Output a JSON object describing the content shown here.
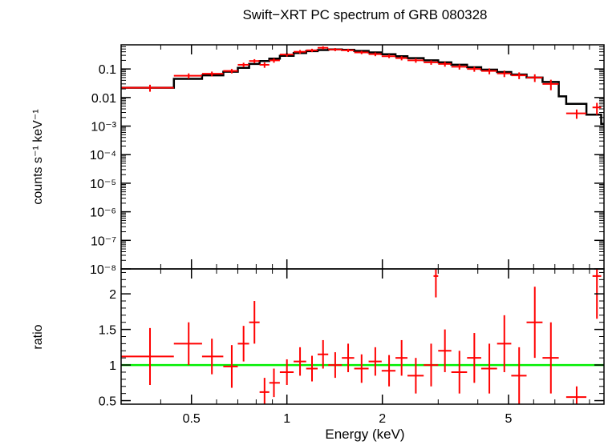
{
  "chart_data": [
    {
      "type": "scatter",
      "title": "Swift−XRT PC spectrum of GRB 080328",
      "xlabel": "Energy (keV)",
      "ylabel": "counts s⁻¹ keV⁻¹",
      "xscale": "log",
      "yscale": "log",
      "xlim": [
        0.3,
        10
      ],
      "ylim": [
        1e-08,
        0.7
      ],
      "x_tick_labels": [
        "0.5",
        "1",
        "2",
        "5"
      ],
      "y_tick_labels": [
        "0.1",
        "0.01",
        "10⁻³",
        "10⁻⁴",
        "10⁻⁵",
        "10⁻⁶",
        "10⁻⁷",
        "10⁻⁸"
      ],
      "series": [
        {
          "name": "data",
          "color": "#ff0000",
          "points": [
            {
              "x": 0.37,
              "xlo": 0.3,
              "xhi": 0.44,
              "y": 0.022,
              "yerr": 0.006
            },
            {
              "x": 0.49,
              "xlo": 0.44,
              "xhi": 0.54,
              "y": 0.058,
              "yerr": 0.012
            },
            {
              "x": 0.58,
              "xlo": 0.54,
              "xhi": 0.63,
              "y": 0.068,
              "yerr": 0.013
            },
            {
              "x": 0.67,
              "xlo": 0.63,
              "xhi": 0.7,
              "y": 0.085,
              "yerr": 0.015
            },
            {
              "x": 0.73,
              "xlo": 0.7,
              "xhi": 0.76,
              "y": 0.14,
              "yerr": 0.025
            },
            {
              "x": 0.79,
              "xlo": 0.76,
              "xhi": 0.82,
              "y": 0.19,
              "yerr": 0.03
            },
            {
              "x": 0.85,
              "xlo": 0.82,
              "xhi": 0.88,
              "y": 0.14,
              "yerr": 0.03
            },
            {
              "x": 0.91,
              "xlo": 0.88,
              "xhi": 0.95,
              "y": 0.2,
              "yerr": 0.035
            },
            {
              "x": 1.0,
              "xlo": 0.95,
              "xhi": 1.05,
              "y": 0.32,
              "yerr": 0.05
            },
            {
              "x": 1.1,
              "xlo": 1.05,
              "xhi": 1.15,
              "y": 0.4,
              "yerr": 0.06
            },
            {
              "x": 1.2,
              "xlo": 1.15,
              "xhi": 1.25,
              "y": 0.45,
              "yerr": 0.06
            },
            {
              "x": 1.3,
              "xlo": 1.25,
              "xhi": 1.35,
              "y": 0.55,
              "yerr": 0.07
            },
            {
              "x": 1.42,
              "xlo": 1.35,
              "xhi": 1.49,
              "y": 0.48,
              "yerr": 0.06
            },
            {
              "x": 1.56,
              "xlo": 1.49,
              "xhi": 1.63,
              "y": 0.45,
              "yerr": 0.06
            },
            {
              "x": 1.72,
              "xlo": 1.63,
              "xhi": 1.81,
              "y": 0.38,
              "yerr": 0.05
            },
            {
              "x": 1.9,
              "xlo": 1.81,
              "xhi": 1.99,
              "y": 0.33,
              "yerr": 0.05
            },
            {
              "x": 2.1,
              "xlo": 1.99,
              "xhi": 2.2,
              "y": 0.28,
              "yerr": 0.04
            },
            {
              "x": 2.3,
              "xlo": 2.2,
              "xhi": 2.4,
              "y": 0.24,
              "yerr": 0.04
            },
            {
              "x": 2.55,
              "xlo": 2.4,
              "xhi": 2.7,
              "y": 0.2,
              "yerr": 0.035
            },
            {
              "x": 2.85,
              "xlo": 2.7,
              "xhi": 3.0,
              "y": 0.17,
              "yerr": 0.03
            },
            {
              "x": 3.15,
              "xlo": 3.0,
              "xhi": 3.3,
              "y": 0.15,
              "yerr": 0.03
            },
            {
              "x": 3.5,
              "xlo": 3.3,
              "xhi": 3.7,
              "y": 0.12,
              "yerr": 0.025
            },
            {
              "x": 3.9,
              "xlo": 3.7,
              "xhi": 4.1,
              "y": 0.1,
              "yerr": 0.02
            },
            {
              "x": 4.35,
              "xlo": 4.1,
              "xhi": 4.6,
              "y": 0.085,
              "yerr": 0.02
            },
            {
              "x": 4.85,
              "xlo": 4.6,
              "xhi": 5.1,
              "y": 0.07,
              "yerr": 0.018
            },
            {
              "x": 5.4,
              "xlo": 5.1,
              "xhi": 5.7,
              "y": 0.06,
              "yerr": 0.016
            },
            {
              "x": 6.05,
              "xlo": 5.7,
              "xhi": 6.4,
              "y": 0.05,
              "yerr": 0.015
            },
            {
              "x": 6.8,
              "xlo": 6.4,
              "xhi": 7.2,
              "y": 0.03,
              "yerr": 0.012
            },
            {
              "x": 8.2,
              "xlo": 7.6,
              "xhi": 8.8,
              "y": 0.0028,
              "yerr": 0.001
            },
            {
              "x": 9.5,
              "xlo": 9.2,
              "xhi": 9.8,
              "y": 0.0045,
              "yerr": 0.002
            }
          ]
        },
        {
          "name": "model",
          "color": "#000000",
          "steps": [
            {
              "x": 0.3,
              "y": 0.022
            },
            {
              "x": 0.44,
              "y": 0.045
            },
            {
              "x": 0.54,
              "y": 0.06
            },
            {
              "x": 0.63,
              "y": 0.08
            },
            {
              "x": 0.7,
              "y": 0.11
            },
            {
              "x": 0.76,
              "y": 0.15
            },
            {
              "x": 0.82,
              "y": 0.19
            },
            {
              "x": 0.88,
              "y": 0.23
            },
            {
              "x": 0.95,
              "y": 0.29
            },
            {
              "x": 1.05,
              "y": 0.36
            },
            {
              "x": 1.15,
              "y": 0.42
            },
            {
              "x": 1.25,
              "y": 0.46
            },
            {
              "x": 1.35,
              "y": 0.48
            },
            {
              "x": 1.49,
              "y": 0.47
            },
            {
              "x": 1.63,
              "y": 0.43
            },
            {
              "x": 1.81,
              "y": 0.38
            },
            {
              "x": 1.99,
              "y": 0.33
            },
            {
              "x": 2.2,
              "y": 0.28
            },
            {
              "x": 2.4,
              "y": 0.24
            },
            {
              "x": 2.7,
              "y": 0.2
            },
            {
              "x": 3.0,
              "y": 0.17
            },
            {
              "x": 3.3,
              "y": 0.14
            },
            {
              "x": 3.7,
              "y": 0.115
            },
            {
              "x": 4.1,
              "y": 0.095
            },
            {
              "x": 4.6,
              "y": 0.078
            },
            {
              "x": 5.1,
              "y": 0.064
            },
            {
              "x": 5.7,
              "y": 0.05
            },
            {
              "x": 6.4,
              "y": 0.035
            },
            {
              "x": 7.2,
              "y": 0.011
            },
            {
              "x": 7.6,
              "y": 0.006
            },
            {
              "x": 8.8,
              "y": 0.0025
            },
            {
              "x": 9.8,
              "y": 0.0012
            },
            {
              "x": 10.0,
              "y": 0.0012
            }
          ]
        }
      ]
    },
    {
      "type": "scatter",
      "xlabel": "Energy (keV)",
      "ylabel": "ratio",
      "xscale": "log",
      "xlim": [
        0.3,
        10
      ],
      "ylim": [
        0.45,
        2.35
      ],
      "x_tick_labels": [
        "0.5",
        "1",
        "2",
        "5"
      ],
      "y_tick_labels": [
        "0.5",
        "1",
        "1.5",
        "2"
      ],
      "reference_line": {
        "y": 1,
        "color": "#00ee00"
      },
      "series": [
        {
          "name": "ratio",
          "color": "#ff0000",
          "points": [
            {
              "x": 0.37,
              "xlo": 0.3,
              "xhi": 0.44,
              "y": 1.12,
              "yerr": 0.4
            },
            {
              "x": 0.49,
              "xlo": 0.44,
              "xhi": 0.54,
              "y": 1.3,
              "yerr": 0.3
            },
            {
              "x": 0.58,
              "xlo": 0.54,
              "xhi": 0.63,
              "y": 1.12,
              "yerr": 0.25
            },
            {
              "x": 0.67,
              "xlo": 0.63,
              "xhi": 0.7,
              "y": 0.98,
              "yerr": 0.3
            },
            {
              "x": 0.73,
              "xlo": 0.7,
              "xhi": 0.76,
              "y": 1.3,
              "yerr": 0.25
            },
            {
              "x": 0.79,
              "xlo": 0.76,
              "xhi": 0.82,
              "y": 1.6,
              "yerr": 0.3
            },
            {
              "x": 0.85,
              "xlo": 0.82,
              "xhi": 0.88,
              "y": 0.62,
              "yerr": 0.2
            },
            {
              "x": 0.91,
              "xlo": 0.88,
              "xhi": 0.95,
              "y": 0.75,
              "yerr": 0.2
            },
            {
              "x": 1.0,
              "xlo": 0.95,
              "xhi": 1.05,
              "y": 0.9,
              "yerr": 0.18
            },
            {
              "x": 1.1,
              "xlo": 1.05,
              "xhi": 1.15,
              "y": 1.05,
              "yerr": 0.2
            },
            {
              "x": 1.2,
              "xlo": 1.15,
              "xhi": 1.25,
              "y": 0.95,
              "yerr": 0.18
            },
            {
              "x": 1.3,
              "xlo": 1.25,
              "xhi": 1.35,
              "y": 1.15,
              "yerr": 0.2
            },
            {
              "x": 1.42,
              "xlo": 1.35,
              "xhi": 1.49,
              "y": 1.0,
              "yerr": 0.18
            },
            {
              "x": 1.56,
              "xlo": 1.49,
              "xhi": 1.63,
              "y": 1.1,
              "yerr": 0.2
            },
            {
              "x": 1.72,
              "xlo": 1.63,
              "xhi": 1.81,
              "y": 0.95,
              "yerr": 0.2
            },
            {
              "x": 1.9,
              "xlo": 1.81,
              "xhi": 1.99,
              "y": 1.05,
              "yerr": 0.2
            },
            {
              "x": 2.1,
              "xlo": 1.99,
              "xhi": 2.2,
              "y": 0.92,
              "yerr": 0.22
            },
            {
              "x": 2.3,
              "xlo": 2.2,
              "xhi": 2.4,
              "y": 1.1,
              "yerr": 0.25
            },
            {
              "x": 2.55,
              "xlo": 2.4,
              "xhi": 2.7,
              "y": 0.85,
              "yerr": 0.25
            },
            {
              "x": 2.85,
              "xlo": 2.7,
              "xhi": 3.0,
              "y": 1.0,
              "yerr": 0.3
            },
            {
              "x": 2.95,
              "xlo": 2.9,
              "xhi": 3.0,
              "y": 2.25,
              "yerr": 0.3
            },
            {
              "x": 3.15,
              "xlo": 3.0,
              "xhi": 3.3,
              "y": 1.2,
              "yerr": 0.3
            },
            {
              "x": 3.5,
              "xlo": 3.3,
              "xhi": 3.7,
              "y": 0.9,
              "yerr": 0.3
            },
            {
              "x": 3.9,
              "xlo": 3.7,
              "xhi": 4.1,
              "y": 1.1,
              "yerr": 0.35
            },
            {
              "x": 4.35,
              "xlo": 4.1,
              "xhi": 4.6,
              "y": 0.95,
              "yerr": 0.35
            },
            {
              "x": 4.85,
              "xlo": 4.6,
              "xhi": 5.1,
              "y": 1.3,
              "yerr": 0.4
            },
            {
              "x": 5.4,
              "xlo": 5.1,
              "xhi": 5.7,
              "y": 0.85,
              "yerr": 0.4
            },
            {
              "x": 6.05,
              "xlo": 5.7,
              "xhi": 6.4,
              "y": 1.6,
              "yerr": 0.5
            },
            {
              "x": 6.8,
              "xlo": 6.4,
              "xhi": 7.2,
              "y": 1.1,
              "yerr": 0.5
            },
            {
              "x": 8.2,
              "xlo": 7.6,
              "xhi": 8.8,
              "y": 0.55,
              "yerr": 0.15
            },
            {
              "x": 9.5,
              "xlo": 9.2,
              "xhi": 9.8,
              "y": 2.25,
              "yerr": 0.6
            }
          ]
        }
      ]
    }
  ]
}
